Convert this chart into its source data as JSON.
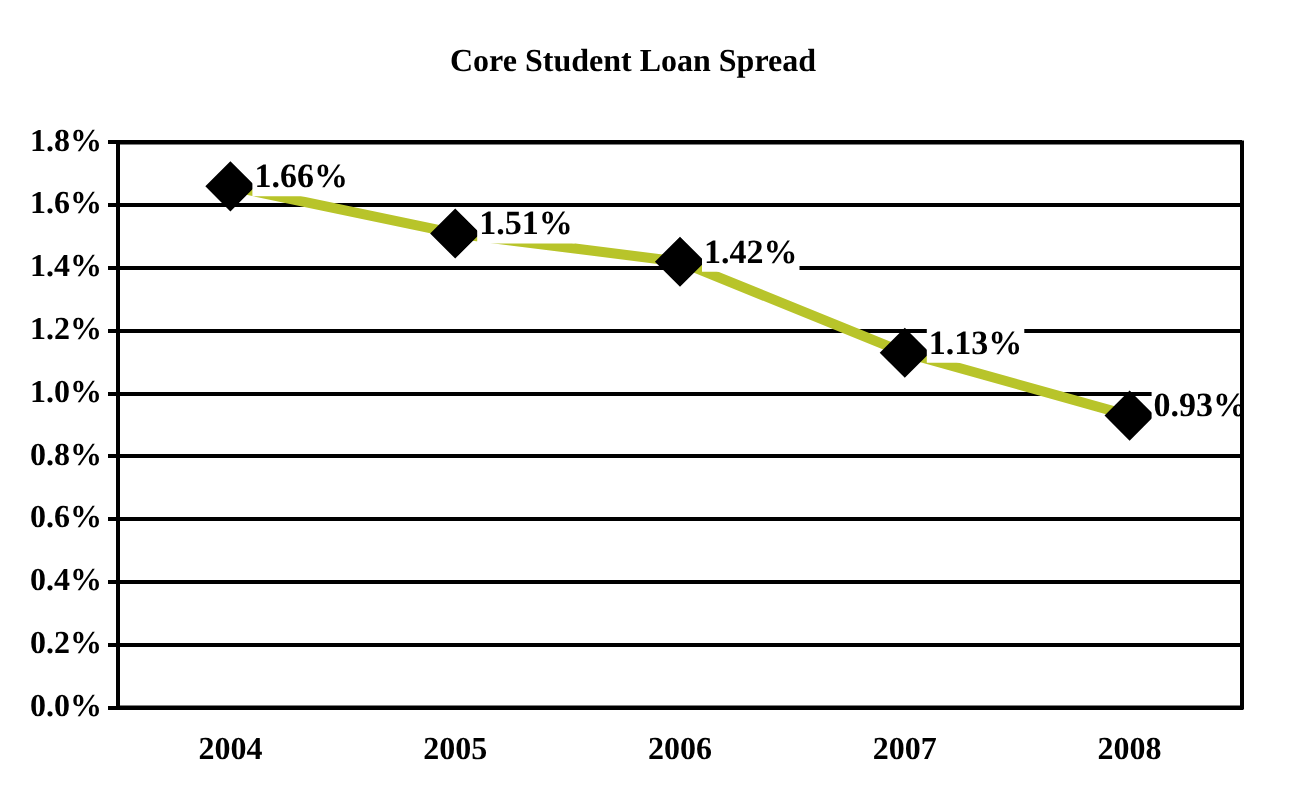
{
  "chart_data": {
    "type": "line",
    "title": "Core Student Loan Spread",
    "categories": [
      "2004",
      "2005",
      "2006",
      "2007",
      "2008"
    ],
    "series": [
      {
        "color": "#b8c42a",
        "values": [
          1.66,
          1.51,
          1.42,
          1.13,
          0.93
        ],
        "value_labels": [
          "1.66%",
          "1.51%",
          "1.42%",
          "1.13%",
          "0.93%"
        ]
      }
    ],
    "ylim": [
      0,
      1.8
    ],
    "yticks": [
      {
        "value": 0,
        "label": "0.0%"
      },
      {
        "value": 0.2,
        "label": "0.2%"
      },
      {
        "value": 0.4,
        "label": "0.4%"
      },
      {
        "value": 0.6,
        "label": "0.6%"
      },
      {
        "value": 0.8,
        "label": "0.8%"
      },
      {
        "value": 1.0,
        "label": "1.0%"
      },
      {
        "value": 1.2,
        "label": "1.2%"
      },
      {
        "value": 1.4,
        "label": "1.4%"
      },
      {
        "value": 1.6,
        "label": "1.6%"
      },
      {
        "value": 1.8,
        "label": "1.8%"
      }
    ],
    "grid": "y",
    "legend": false,
    "marker": "diamond",
    "line_style": "solid"
  }
}
